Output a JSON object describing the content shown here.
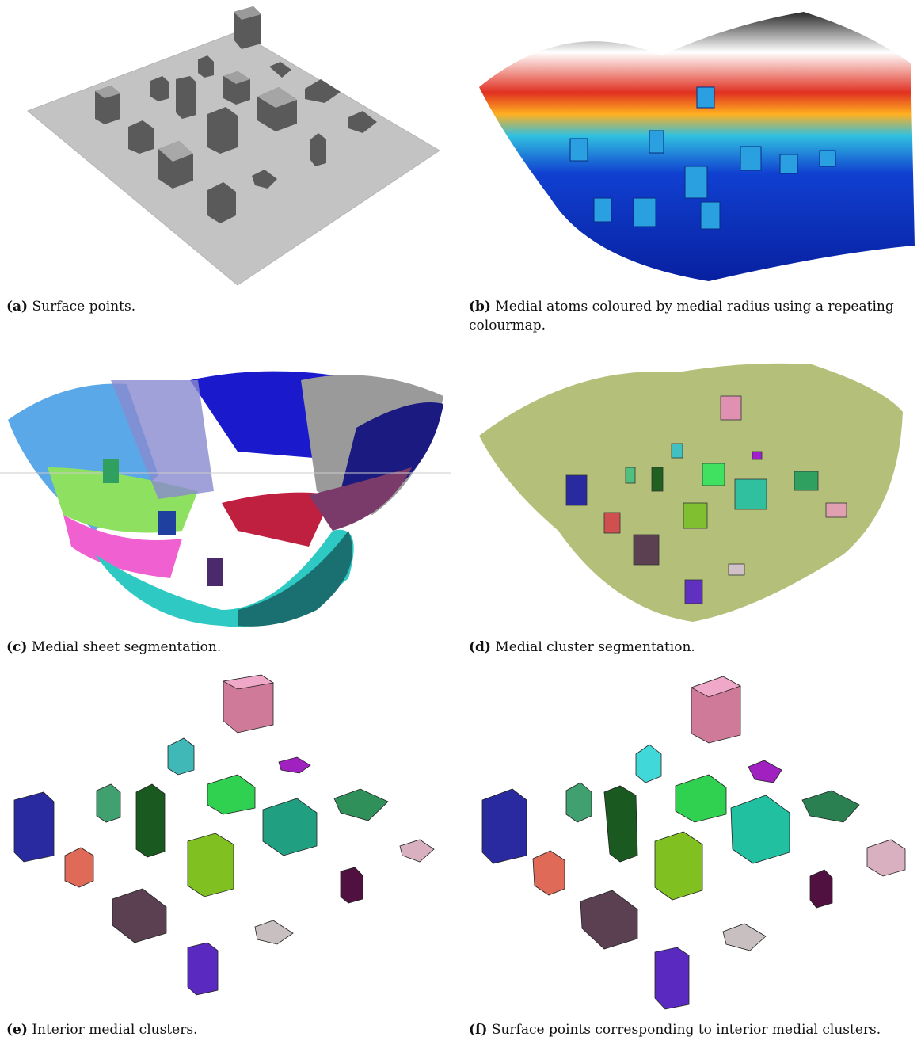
{
  "figure": {
    "panels": [
      {
        "id": "a",
        "label": "(a)",
        "caption": "Surface points."
      },
      {
        "id": "b",
        "label": "(b)",
        "caption": "Medial atoms coloured by medial radius using a repeating colourmap."
      },
      {
        "id": "c",
        "label": "(c)",
        "caption": "Medial sheet segmentation."
      },
      {
        "id": "d",
        "label": "(d)",
        "caption": "Medial cluster segmentation."
      },
      {
        "id": "e",
        "label": "(e)",
        "caption": "Interior medial clusters."
      },
      {
        "id": "f",
        "label": "(f)",
        "caption": "Surface points corresponding to interior medial clusters."
      }
    ],
    "colors": {
      "surface_gray": "#bdbdbd",
      "box_dark": "#4a4a4a",
      "medial_olive": "#a9b86a",
      "sheet_cyan": "#2fc9c4",
      "sheet_pink": "#f060d0",
      "sheet_blue": "#5aa8e8",
      "sheet_green": "#8ee060",
      "sheet_navy": "#1a1a80"
    }
  }
}
